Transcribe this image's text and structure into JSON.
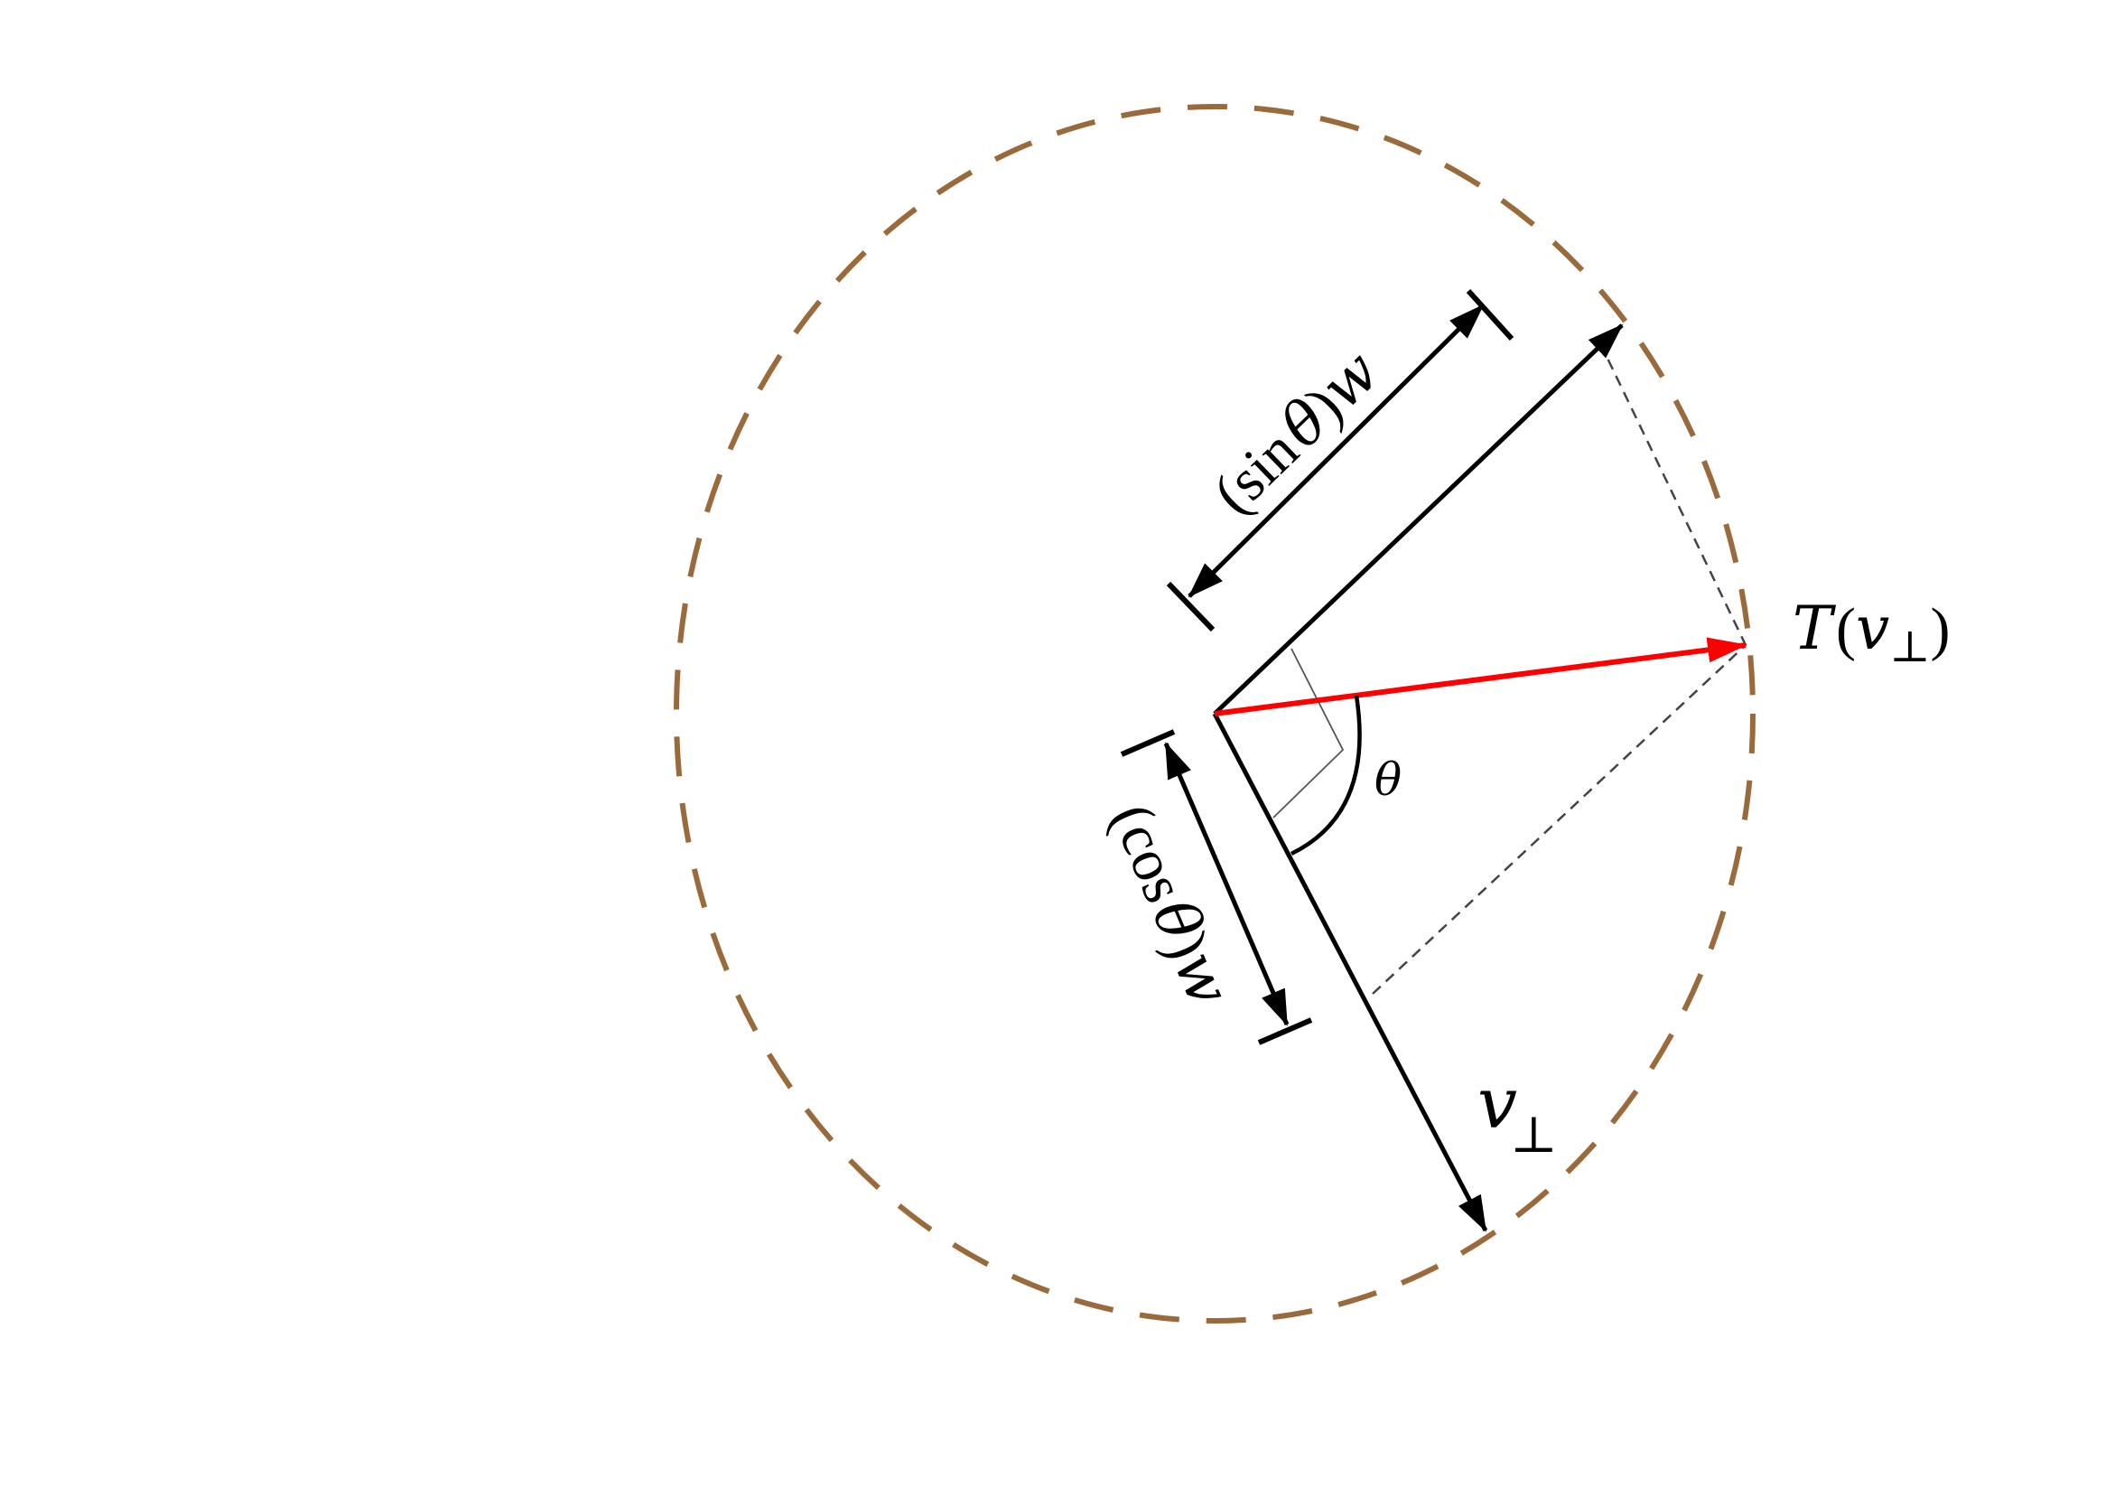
{
  "diagram": {
    "colors": {
      "circle": "#9a6a3a",
      "vector": "#000000",
      "transformed_vector": "#ff0000",
      "projection_lines": "#444444"
    },
    "labels": {
      "sin_label": {
        "open_paren": "(",
        "fn": "sin",
        "theta": "θ",
        "close_paren": ")",
        "w": "w"
      },
      "cos_label": {
        "open_paren": "(",
        "fn": "cos",
        "theta": "θ",
        "close_paren": ")",
        "w": "w"
      },
      "theta_label": "θ",
      "v_perp_label": {
        "v": "v",
        "perp": "⊥"
      },
      "t_v_perp_label": {
        "t": "T",
        "open_paren": "(",
        "v": "v",
        "perp": "⊥",
        "close_paren": ")"
      }
    }
  }
}
